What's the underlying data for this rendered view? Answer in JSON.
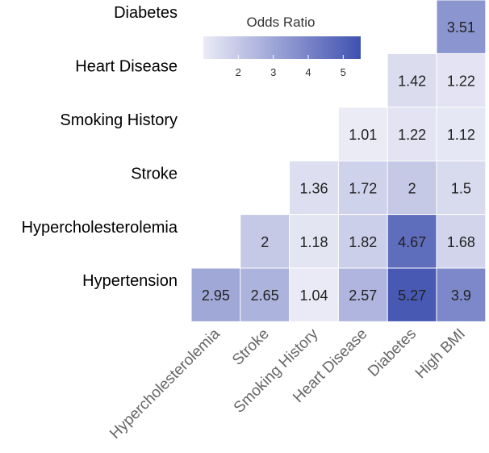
{
  "chart_data": {
    "type": "heatmap",
    "title": "",
    "xlabel": "",
    "ylabel": "",
    "rows": [
      "Diabetes",
      "Heart Disease",
      "Smoking History",
      "Stroke",
      "Hypercholesterolemia",
      "Hypertension"
    ],
    "columns": [
      "Hypercholesterolemia",
      "Stroke",
      "Smoking History",
      "Heart Disease",
      "Diabetes",
      "High BMI"
    ],
    "values": [
      [
        null,
        null,
        null,
        null,
        null,
        3.51
      ],
      [
        null,
        null,
        null,
        null,
        1.42,
        1.22
      ],
      [
        null,
        null,
        null,
        1.01,
        1.22,
        1.12
      ],
      [
        null,
        null,
        1.36,
        1.72,
        2,
        1.5
      ],
      [
        null,
        2,
        1.18,
        1.82,
        4.67,
        1.68
      ],
      [
        2.95,
        2.65,
        1.04,
        2.57,
        5.27,
        3.9
      ]
    ],
    "value_labels": [
      [
        null,
        null,
        null,
        null,
        null,
        "3.51"
      ],
      [
        null,
        null,
        null,
        null,
        "1.42",
        "1.22"
      ],
      [
        null,
        null,
        null,
        "1.01",
        "1.22",
        "1.12"
      ],
      [
        null,
        null,
        "1.36",
        "1.72",
        "2",
        "1.5"
      ],
      [
        null,
        "2",
        "1.18",
        "1.82",
        "4.67",
        "1.68"
      ],
      [
        "2.95",
        "2.65",
        "1.04",
        "2.57",
        "5.27",
        "3.9"
      ]
    ],
    "colorbar": {
      "title": "Odds Ratio",
      "range": [
        1,
        5.5
      ],
      "ticks": [
        2,
        3,
        4,
        5
      ],
      "tick_labels": [
        "2",
        "3",
        "4",
        "5"
      ],
      "low_color": "#ebebf6",
      "high_color": "#3f51b0"
    },
    "legend_position": "top-center"
  }
}
